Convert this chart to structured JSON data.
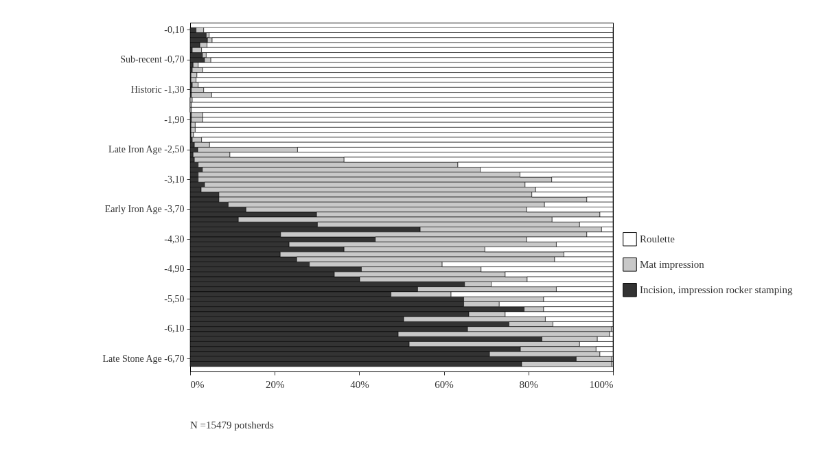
{
  "chart_data": {
    "type": "bar",
    "orientation": "horizontal",
    "stacked": true,
    "categories": [
      "-0,10",
      null,
      null,
      null,
      null,
      null,
      "Sub-recent -0,70",
      null,
      null,
      null,
      null,
      null,
      "Historic -1,30",
      null,
      null,
      null,
      null,
      null,
      "-1,90",
      null,
      null,
      null,
      null,
      null,
      "Late Iron Age -2,50",
      null,
      null,
      null,
      null,
      null,
      "-3,10",
      null,
      null,
      null,
      null,
      null,
      "Early Iron Age -3,70",
      null,
      null,
      null,
      null,
      null,
      "-4,30",
      null,
      null,
      null,
      null,
      null,
      "-4,90",
      null,
      null,
      null,
      null,
      null,
      "-5,50",
      null,
      null,
      null,
      null,
      null,
      "-6,10",
      null,
      null,
      null,
      null,
      null,
      "Late Stone Age -6,70",
      null
    ],
    "series": [
      {
        "name": "Incision, impression rocker stamping",
        "color": "#333333",
        "values": [
          1.4,
          3.8,
          4.1,
          2.3,
          0.5,
          2.9,
          3.4,
          0.7,
          0.5,
          0.2,
          0.2,
          0.5,
          0.3,
          0.3,
          0,
          0,
          0,
          0.3,
          0.3,
          0.2,
          0.2,
          0.2,
          0.5,
          1.0,
          1.8,
          0.7,
          1.0,
          1.9,
          2.9,
          1.9,
          1.9,
          3.4,
          2.6,
          6.8,
          6.8,
          9.0,
          13.2,
          29.9,
          11.4,
          30.1,
          54.4,
          21.4,
          43.8,
          23.4,
          36.4,
          21.3,
          25.2,
          28.2,
          40.5,
          34.1,
          40.1,
          64.9,
          53.8,
          47.5,
          64.7,
          64.7,
          79.0,
          65.9,
          50.5,
          75.4,
          65.6,
          49.2,
          83.2,
          51.8,
          78.1,
          70.8,
          91.3,
          78.4
        ]
      },
      {
        "name": "Mat impression",
        "color": "#c8c8c8",
        "values": [
          1.8,
          0.7,
          1.1,
          1.7,
          2.2,
          0.9,
          1.5,
          1.2,
          2.5,
          1.4,
          1.2,
          1.4,
          2.9,
          4.8,
          0.5,
          0.3,
          0.3,
          2.7,
          2.7,
          1.0,
          1.0,
          0.6,
          2.2,
          3.6,
          23.6,
          8.7,
          35.4,
          61.4,
          65.7,
          76.1,
          83.6,
          75.8,
          79.1,
          74.0,
          87.0,
          74.8,
          66.4,
          67.0,
          74.2,
          62.0,
          42.9,
          72.4,
          35.8,
          63.2,
          33.3,
          67.1,
          61.0,
          31.4,
          28.3,
          40.4,
          39.6,
          6.3,
          32.8,
          14.2,
          18.9,
          8.4,
          4.6,
          8.6,
          33.5,
          10.4,
          34.1,
          50.0,
          13.1,
          40.3,
          17.9,
          26.1,
          8.4,
          21.3
        ]
      },
      {
        "name": "Roulette",
        "color": "#ffffff",
        "values": [
          96.8,
          95.5,
          94.8,
          96.0,
          97.3,
          96.2,
          95.1,
          98.1,
          97.0,
          98.4,
          98.6,
          98.1,
          96.8,
          94.9,
          99.5,
          99.7,
          99.7,
          97.0,
          97.0,
          98.8,
          98.8,
          99.2,
          97.3,
          95.4,
          74.6,
          90.6,
          63.6,
          36.7,
          31.4,
          22.0,
          14.5,
          20.8,
          18.3,
          19.2,
          6.2,
          16.2,
          20.4,
          3.1,
          14.4,
          7.9,
          2.7,
          6.2,
          20.4,
          13.4,
          30.3,
          11.6,
          13.8,
          40.4,
          31.2,
          25.5,
          20.3,
          28.8,
          13.4,
          38.3,
          16.4,
          26.9,
          16.4,
          25.5,
          16.0,
          14.2,
          0.3,
          0.8,
          3.7,
          7.9,
          4.0,
          3.1,
          0.3,
          0.3
        ]
      }
    ],
    "xlim": [
      0,
      100
    ],
    "xticks": [
      {
        "value": 0,
        "label": "0%"
      },
      {
        "value": 20,
        "label": "20%"
      },
      {
        "value": 40,
        "label": "40%"
      },
      {
        "value": 60,
        "label": "60%"
      },
      {
        "value": 80,
        "label": "80%"
      },
      {
        "value": 100,
        "label": "100%"
      }
    ],
    "legend": "right",
    "annotations": [
      "N =15479 potsherds"
    ]
  }
}
